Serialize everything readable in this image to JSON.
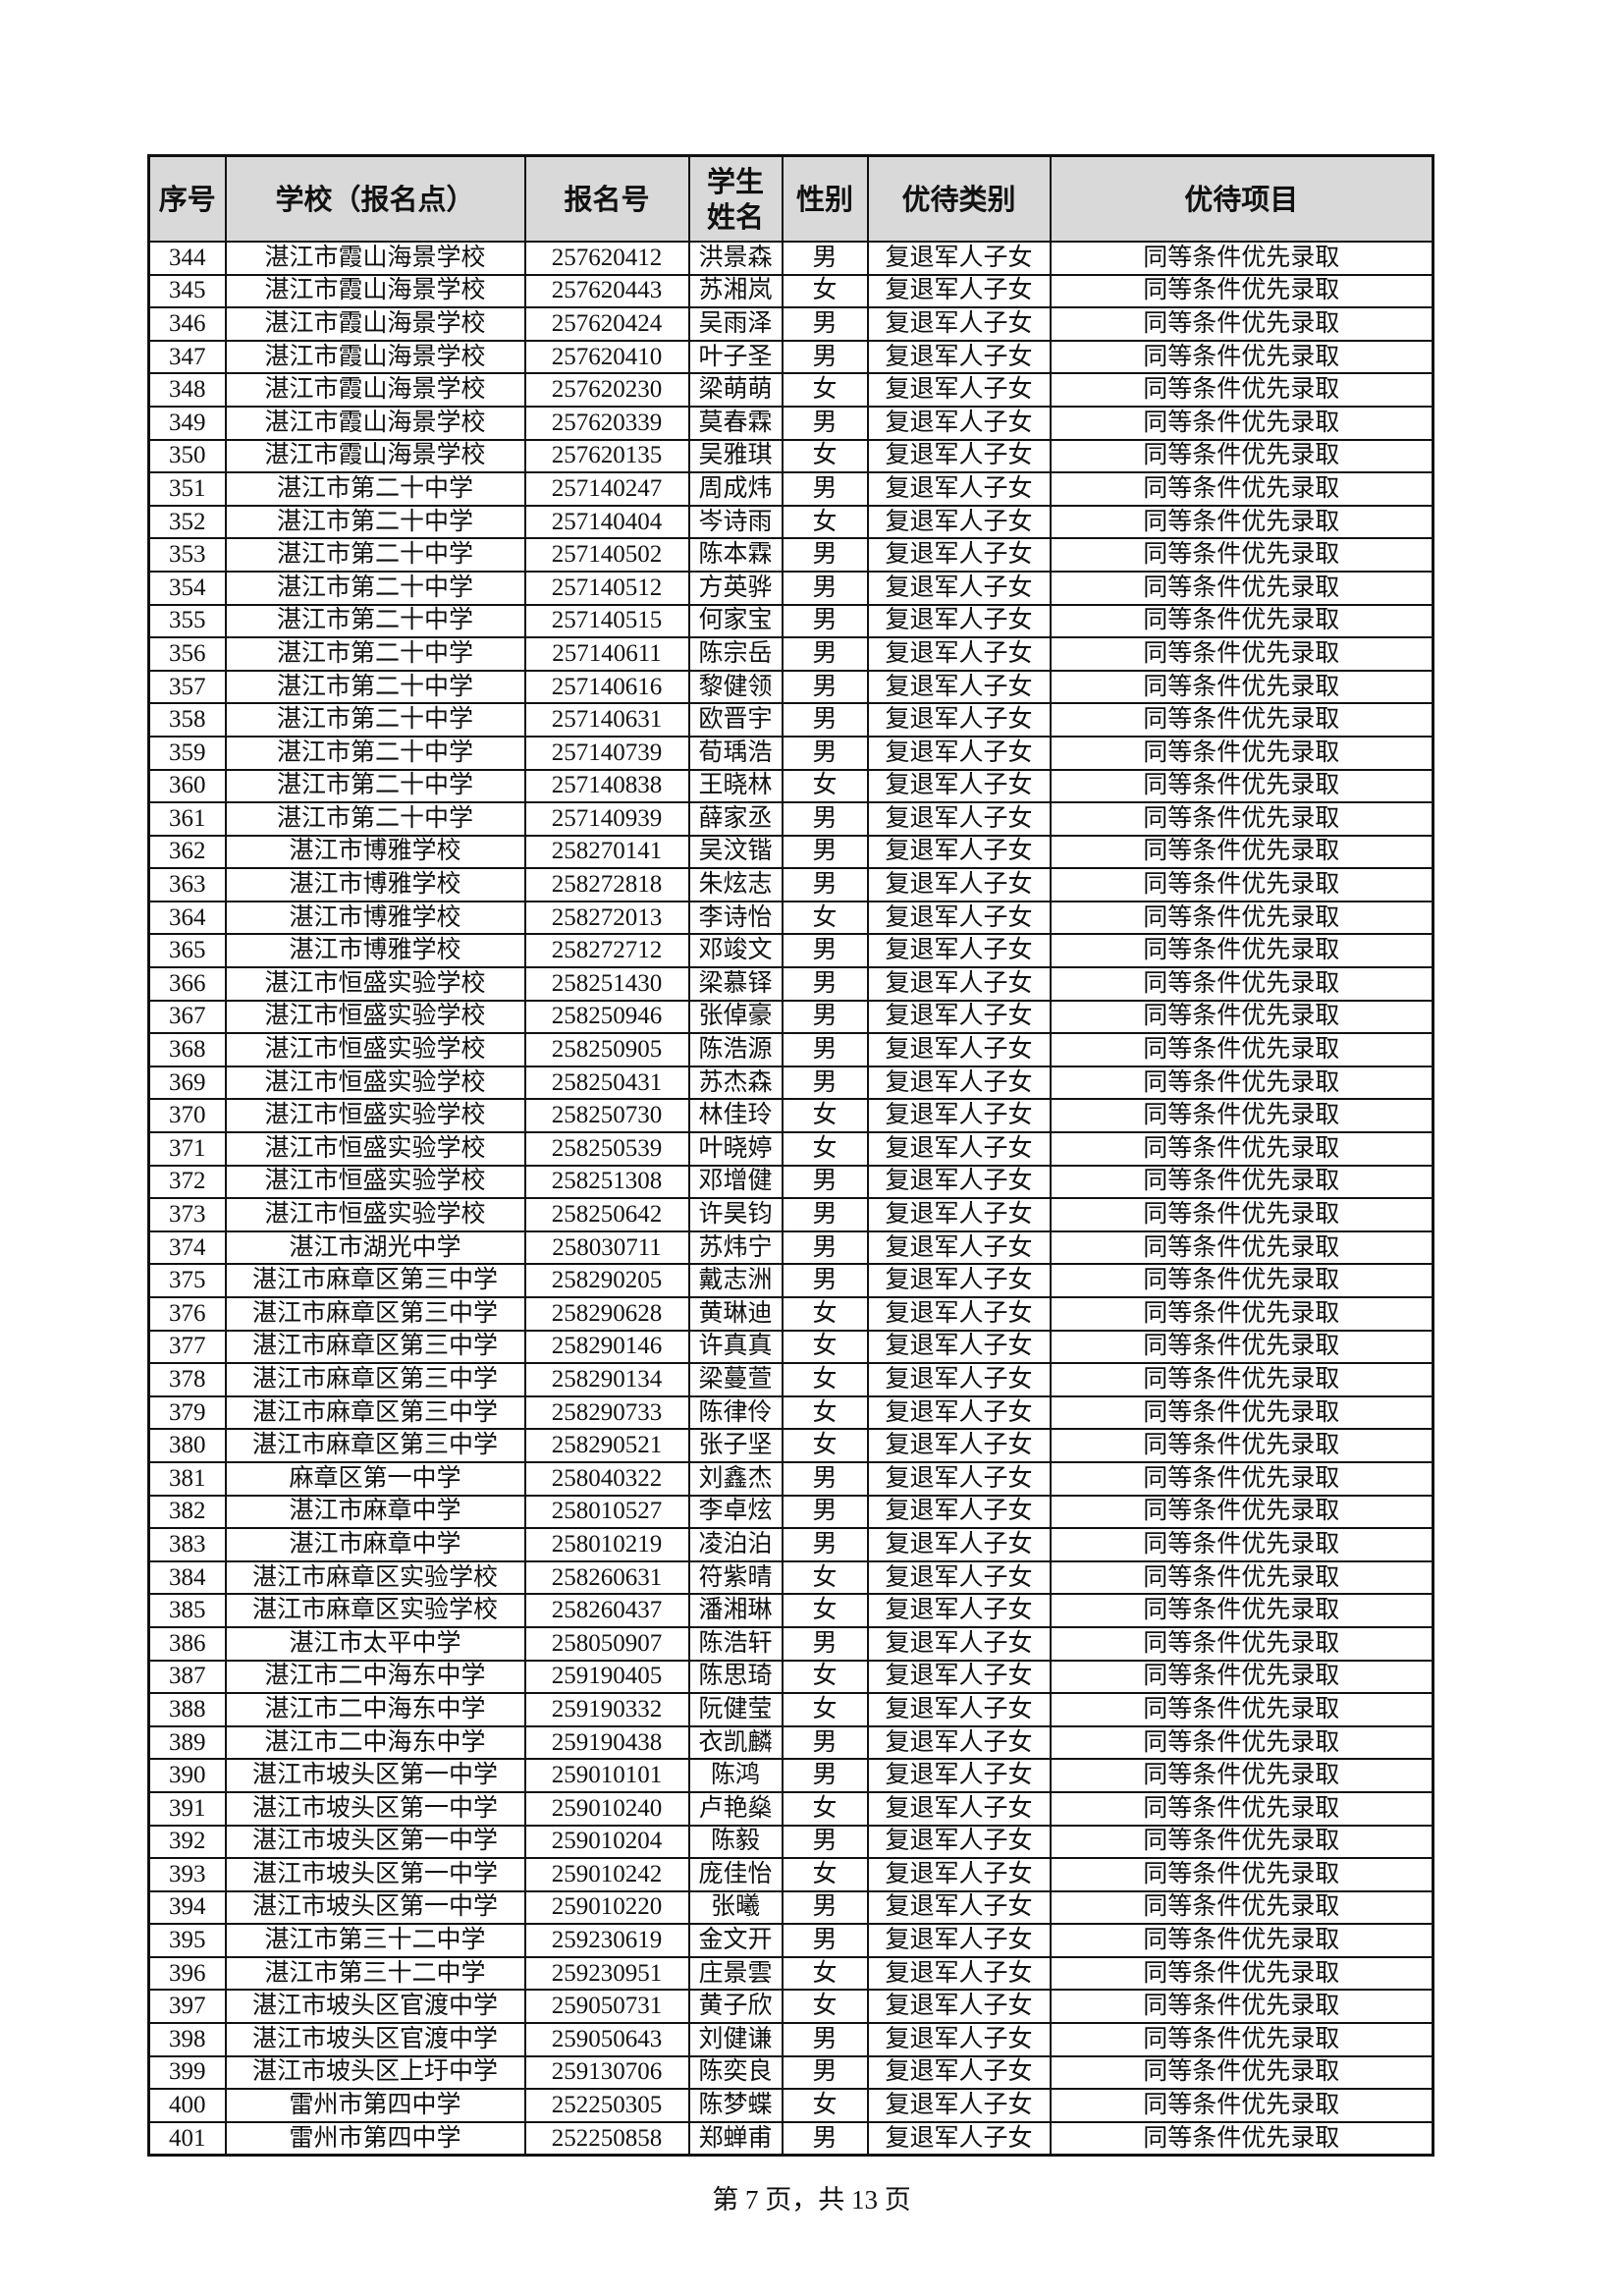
{
  "table": {
    "headers": [
      "序号",
      "学校（报名点）",
      "报名号",
      "学生\n姓名",
      "性别",
      "优待类别",
      "优待项目"
    ],
    "rows": [
      [
        "344",
        "湛江市霞山海景学校",
        "257620412",
        "洪景森",
        "男",
        "复退军人子女",
        "同等条件优先录取"
      ],
      [
        "345",
        "湛江市霞山海景学校",
        "257620443",
        "苏湘岚",
        "女",
        "复退军人子女",
        "同等条件优先录取"
      ],
      [
        "346",
        "湛江市霞山海景学校",
        "257620424",
        "吴雨泽",
        "男",
        "复退军人子女",
        "同等条件优先录取"
      ],
      [
        "347",
        "湛江市霞山海景学校",
        "257620410",
        "叶子圣",
        "男",
        "复退军人子女",
        "同等条件优先录取"
      ],
      [
        "348",
        "湛江市霞山海景学校",
        "257620230",
        "梁萌萌",
        "女",
        "复退军人子女",
        "同等条件优先录取"
      ],
      [
        "349",
        "湛江市霞山海景学校",
        "257620339",
        "莫春霖",
        "男",
        "复退军人子女",
        "同等条件优先录取"
      ],
      [
        "350",
        "湛江市霞山海景学校",
        "257620135",
        "吴雅琪",
        "女",
        "复退军人子女",
        "同等条件优先录取"
      ],
      [
        "351",
        "湛江市第二十中学",
        "257140247",
        "周成炜",
        "男",
        "复退军人子女",
        "同等条件优先录取"
      ],
      [
        "352",
        "湛江市第二十中学",
        "257140404",
        "岑诗雨",
        "女",
        "复退军人子女",
        "同等条件优先录取"
      ],
      [
        "353",
        "湛江市第二十中学",
        "257140502",
        "陈本霖",
        "男",
        "复退军人子女",
        "同等条件优先录取"
      ],
      [
        "354",
        "湛江市第二十中学",
        "257140512",
        "方英骅",
        "男",
        "复退军人子女",
        "同等条件优先录取"
      ],
      [
        "355",
        "湛江市第二十中学",
        "257140515",
        "何家宝",
        "男",
        "复退军人子女",
        "同等条件优先录取"
      ],
      [
        "356",
        "湛江市第二十中学",
        "257140611",
        "陈宗岳",
        "男",
        "复退军人子女",
        "同等条件优先录取"
      ],
      [
        "357",
        "湛江市第二十中学",
        "257140616",
        "黎健领",
        "男",
        "复退军人子女",
        "同等条件优先录取"
      ],
      [
        "358",
        "湛江市第二十中学",
        "257140631",
        "欧晋宇",
        "男",
        "复退军人子女",
        "同等条件优先录取"
      ],
      [
        "359",
        "湛江市第二十中学",
        "257140739",
        "荀瑀浩",
        "男",
        "复退军人子女",
        "同等条件优先录取"
      ],
      [
        "360",
        "湛江市第二十中学",
        "257140838",
        "王晓林",
        "女",
        "复退军人子女",
        "同等条件优先录取"
      ],
      [
        "361",
        "湛江市第二十中学",
        "257140939",
        "薛家丞",
        "男",
        "复退军人子女",
        "同等条件优先录取"
      ],
      [
        "362",
        "湛江市博雅学校",
        "258270141",
        "吴汶锴",
        "男",
        "复退军人子女",
        "同等条件优先录取"
      ],
      [
        "363",
        "湛江市博雅学校",
        "258272818",
        "朱炫志",
        "男",
        "复退军人子女",
        "同等条件优先录取"
      ],
      [
        "364",
        "湛江市博雅学校",
        "258272013",
        "李诗怡",
        "女",
        "复退军人子女",
        "同等条件优先录取"
      ],
      [
        "365",
        "湛江市博雅学校",
        "258272712",
        "邓竣文",
        "男",
        "复退军人子女",
        "同等条件优先录取"
      ],
      [
        "366",
        "湛江市恒盛实验学校",
        "258251430",
        "梁慕铎",
        "男",
        "复退军人子女",
        "同等条件优先录取"
      ],
      [
        "367",
        "湛江市恒盛实验学校",
        "258250946",
        "张倬豪",
        "男",
        "复退军人子女",
        "同等条件优先录取"
      ],
      [
        "368",
        "湛江市恒盛实验学校",
        "258250905",
        "陈浩源",
        "男",
        "复退军人子女",
        "同等条件优先录取"
      ],
      [
        "369",
        "湛江市恒盛实验学校",
        "258250431",
        "苏杰森",
        "男",
        "复退军人子女",
        "同等条件优先录取"
      ],
      [
        "370",
        "湛江市恒盛实验学校",
        "258250730",
        "林佳玲",
        "女",
        "复退军人子女",
        "同等条件优先录取"
      ],
      [
        "371",
        "湛江市恒盛实验学校",
        "258250539",
        "叶晓婷",
        "女",
        "复退军人子女",
        "同等条件优先录取"
      ],
      [
        "372",
        "湛江市恒盛实验学校",
        "258251308",
        "邓增健",
        "男",
        "复退军人子女",
        "同等条件优先录取"
      ],
      [
        "373",
        "湛江市恒盛实验学校",
        "258250642",
        "许昊钧",
        "男",
        "复退军人子女",
        "同等条件优先录取"
      ],
      [
        "374",
        "湛江市湖光中学",
        "258030711",
        "苏炜宁",
        "男",
        "复退军人子女",
        "同等条件优先录取"
      ],
      [
        "375",
        "湛江市麻章区第三中学",
        "258290205",
        "戴志洲",
        "男",
        "复退军人子女",
        "同等条件优先录取"
      ],
      [
        "376",
        "湛江市麻章区第三中学",
        "258290628",
        "黄琳迪",
        "女",
        "复退军人子女",
        "同等条件优先录取"
      ],
      [
        "377",
        "湛江市麻章区第三中学",
        "258290146",
        "许真真",
        "女",
        "复退军人子女",
        "同等条件优先录取"
      ],
      [
        "378",
        "湛江市麻章区第三中学",
        "258290134",
        "梁蔓萱",
        "女",
        "复退军人子女",
        "同等条件优先录取"
      ],
      [
        "379",
        "湛江市麻章区第三中学",
        "258290733",
        "陈律伶",
        "女",
        "复退军人子女",
        "同等条件优先录取"
      ],
      [
        "380",
        "湛江市麻章区第三中学",
        "258290521",
        "张子坚",
        "女",
        "复退军人子女",
        "同等条件优先录取"
      ],
      [
        "381",
        "麻章区第一中学",
        "258040322",
        "刘鑫杰",
        "男",
        "复退军人子女",
        "同等条件优先录取"
      ],
      [
        "382",
        "湛江市麻章中学",
        "258010527",
        "李卓炫",
        "男",
        "复退军人子女",
        "同等条件优先录取"
      ],
      [
        "383",
        "湛江市麻章中学",
        "258010219",
        "凌泊泊",
        "男",
        "复退军人子女",
        "同等条件优先录取"
      ],
      [
        "384",
        "湛江市麻章区实验学校",
        "258260631",
        "符紫晴",
        "女",
        "复退军人子女",
        "同等条件优先录取"
      ],
      [
        "385",
        "湛江市麻章区实验学校",
        "258260437",
        "潘湘琳",
        "女",
        "复退军人子女",
        "同等条件优先录取"
      ],
      [
        "386",
        "湛江市太平中学",
        "258050907",
        "陈浩轩",
        "男",
        "复退军人子女",
        "同等条件优先录取"
      ],
      [
        "387",
        "湛江市二中海东中学",
        "259190405",
        "陈思琦",
        "女",
        "复退军人子女",
        "同等条件优先录取"
      ],
      [
        "388",
        "湛江市二中海东中学",
        "259190332",
        "阮健莹",
        "女",
        "复退军人子女",
        "同等条件优先录取"
      ],
      [
        "389",
        "湛江市二中海东中学",
        "259190438",
        "衣凯麟",
        "男",
        "复退军人子女",
        "同等条件优先录取"
      ],
      [
        "390",
        "湛江市坡头区第一中学",
        "259010101",
        "陈鸿",
        "男",
        "复退军人子女",
        "同等条件优先录取"
      ],
      [
        "391",
        "湛江市坡头区第一中学",
        "259010240",
        "卢艳燊",
        "女",
        "复退军人子女",
        "同等条件优先录取"
      ],
      [
        "392",
        "湛江市坡头区第一中学",
        "259010204",
        "陈毅",
        "男",
        "复退军人子女",
        "同等条件优先录取"
      ],
      [
        "393",
        "湛江市坡头区第一中学",
        "259010242",
        "庞佳怡",
        "女",
        "复退军人子女",
        "同等条件优先录取"
      ],
      [
        "394",
        "湛江市坡头区第一中学",
        "259010220",
        "张曦",
        "男",
        "复退军人子女",
        "同等条件优先录取"
      ],
      [
        "395",
        "湛江市第三十二中学",
        "259230619",
        "金文开",
        "男",
        "复退军人子女",
        "同等条件优先录取"
      ],
      [
        "396",
        "湛江市第三十二中学",
        "259230951",
        "庄景雲",
        "女",
        "复退军人子女",
        "同等条件优先录取"
      ],
      [
        "397",
        "湛江市坡头区官渡中学",
        "259050731",
        "黄子欣",
        "女",
        "复退军人子女",
        "同等条件优先录取"
      ],
      [
        "398",
        "湛江市坡头区官渡中学",
        "259050643",
        "刘健谦",
        "男",
        "复退军人子女",
        "同等条件优先录取"
      ],
      [
        "399",
        "湛江市坡头区上圩中学",
        "259130706",
        "陈奕良",
        "男",
        "复退军人子女",
        "同等条件优先录取"
      ],
      [
        "400",
        "雷州市第四中学",
        "252250305",
        "陈梦蝶",
        "女",
        "复退军人子女",
        "同等条件优先录取"
      ],
      [
        "401",
        "雷州市第四中学",
        "252250858",
        "郑蝉甫",
        "男",
        "复退军人子女",
        "同等条件优先录取"
      ]
    ]
  },
  "footer": {
    "page_label": "第 7 页，共 13 页"
  },
  "colors": {
    "header_bg": "#d9d9d9",
    "border": "#111111"
  }
}
